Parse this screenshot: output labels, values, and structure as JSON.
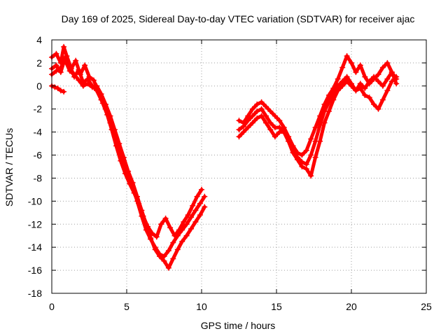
{
  "chart_data": {
    "type": "scatter",
    "title": "Day 169 of 2025, Sidereal Day-to-day VTEC variation (SDTVAR) for receiver ajac",
    "xlabel": "GPS time / hours",
    "ylabel": "SDTVAR / TECUs",
    "xlim": [
      0,
      25
    ],
    "ylim": [
      -18,
      4
    ],
    "xticks": [
      0,
      5,
      10,
      15,
      20,
      25
    ],
    "yticks": [
      -18,
      -16,
      -14,
      -12,
      -10,
      -8,
      -6,
      -4,
      -2,
      0,
      2,
      4
    ],
    "grid": true,
    "legend": "none",
    "marker": "+",
    "color": "#ff0000",
    "series": [
      {
        "x": [
          0.0,
          0.3,
          0.6,
          0.8,
          1.0,
          1.3,
          1.6,
          1.9,
          2.2,
          2.5,
          2.8,
          3.1,
          3.4,
          3.7,
          4.0,
          4.3,
          4.6,
          4.9,
          5.2,
          5.5,
          5.8,
          6.1,
          6.4,
          6.7,
          7.0,
          7.3,
          7.6,
          7.9,
          8.2,
          8.5,
          8.8,
          9.1,
          9.4,
          9.7,
          10.0
        ],
        "y": [
          2.5,
          2.8,
          2.0,
          3.4,
          2.6,
          1.5,
          2.2,
          1.0,
          1.8,
          0.8,
          0.5,
          -0.5,
          -1.5,
          -2.5,
          -3.8,
          -5.2,
          -6.5,
          -7.6,
          -8.5,
          -9.3,
          -10.2,
          -11.3,
          -12.2,
          -12.8,
          -13.1,
          -12.0,
          -11.5,
          -12.3,
          -13.0,
          -12.5,
          -11.8,
          -11.2,
          -10.4,
          -9.6,
          -9.0
        ]
      },
      {
        "x": [
          0.0,
          0.3,
          0.6,
          0.9,
          1.2,
          1.5,
          1.8,
          2.1,
          2.4,
          2.7,
          3.0,
          3.3,
          3.6,
          3.9,
          4.2,
          4.5,
          4.8,
          5.1,
          5.4,
          5.7,
          6.0,
          6.3,
          6.6,
          6.9,
          7.2,
          7.5,
          7.8,
          8.1,
          8.4,
          8.7,
          9.0,
          9.3,
          9.6,
          9.9,
          10.2
        ],
        "y": [
          1.5,
          1.8,
          1.2,
          2.5,
          1.8,
          0.8,
          1.4,
          0.3,
          0.6,
          0.0,
          -0.4,
          -1.2,
          -2.0,
          -3.2,
          -4.4,
          -5.6,
          -6.8,
          -7.8,
          -8.8,
          -10.0,
          -11.3,
          -12.5,
          -13.3,
          -14.0,
          -14.6,
          -14.8,
          -14.3,
          -13.6,
          -13.0,
          -12.5,
          -12.0,
          -11.4,
          -10.8,
          -10.2,
          -9.6
        ]
      },
      {
        "x": [
          0.0,
          0.3,
          0.6,
          0.9,
          1.2,
          1.5,
          1.8,
          2.1,
          2.4,
          2.7,
          3.0,
          3.3,
          3.6,
          3.9,
          4.2,
          4.5,
          4.8,
          5.1,
          5.4,
          5.7,
          6.0,
          6.3,
          6.6,
          6.9,
          7.2,
          7.5,
          7.8,
          8.1,
          8.4,
          8.7,
          9.0,
          9.3,
          9.6,
          9.9,
          10.2
        ],
        "y": [
          1.0,
          1.3,
          1.6,
          2.2,
          1.3,
          1.0,
          0.5,
          0.0,
          0.2,
          -0.1,
          0.0,
          -0.7,
          -1.6,
          -2.6,
          -3.8,
          -5.0,
          -6.2,
          -7.4,
          -8.4,
          -9.6,
          -10.8,
          -12.0,
          -13.2,
          -14.2,
          -14.8,
          -15.2,
          -15.8,
          -15.0,
          -14.2,
          -13.5,
          -13.0,
          -12.4,
          -11.8,
          -11.2,
          -10.5
        ]
      },
      {
        "x": [
          0.0,
          0.2,
          0.4,
          0.6,
          0.8
        ],
        "y": [
          0.0,
          -0.1,
          -0.2,
          -0.4,
          -0.5
        ]
      },
      {
        "x": [
          12.5,
          12.8,
          13.1,
          13.4,
          13.7,
          14.0,
          14.3,
          14.6,
          14.9,
          15.2,
          15.5,
          15.8,
          16.1,
          16.4,
          16.7,
          17.0,
          17.3,
          17.6,
          17.9,
          18.2,
          18.5,
          18.8,
          19.1,
          19.4,
          19.7,
          20.0,
          20.3,
          20.6,
          20.9,
          21.2,
          21.5,
          21.8,
          22.1,
          22.4,
          22.7,
          23.0
        ],
        "y": [
          -3.0,
          -3.2,
          -2.6,
          -2.0,
          -1.6,
          -1.4,
          -1.8,
          -2.2,
          -2.6,
          -3.0,
          -3.6,
          -4.4,
          -5.2,
          -5.8,
          -6.0,
          -5.6,
          -4.6,
          -3.6,
          -2.6,
          -1.6,
          -0.8,
          -0.2,
          0.6,
          1.6,
          2.6,
          2.0,
          1.2,
          1.8,
          0.8,
          0.2,
          0.6,
          1.0,
          1.6,
          2.0,
          1.2,
          0.6
        ]
      },
      {
        "x": [
          12.5,
          12.8,
          13.1,
          13.4,
          13.7,
          14.0,
          14.3,
          14.6,
          14.9,
          15.2,
          15.5,
          15.8,
          16.1,
          16.4,
          16.7,
          17.0,
          17.3,
          17.6,
          17.9,
          18.2,
          18.5,
          18.8,
          19.1,
          19.4,
          19.7,
          20.0,
          20.3,
          20.6,
          20.9,
          21.2,
          21.5,
          21.8,
          22.1,
          22.4,
          22.7,
          23.0
        ],
        "y": [
          -3.8,
          -3.5,
          -3.0,
          -2.6,
          -2.2,
          -2.0,
          -2.6,
          -3.2,
          -3.6,
          -3.6,
          -4.0,
          -4.8,
          -5.6,
          -6.2,
          -6.6,
          -6.8,
          -6.0,
          -4.8,
          -3.4,
          -2.2,
          -1.4,
          -0.6,
          0.0,
          0.4,
          0.8,
          0.2,
          -0.4,
          -0.2,
          -0.8,
          -1.0,
          -1.6,
          -2.0,
          -1.2,
          -0.4,
          0.4,
          0.8
        ]
      },
      {
        "x": [
          12.5,
          12.8,
          13.1,
          13.4,
          13.7,
          14.0,
          14.3,
          14.6,
          14.9,
          15.2,
          15.5,
          15.8,
          16.1,
          16.4,
          16.7,
          17.0,
          17.3,
          17.6,
          17.9,
          18.2,
          18.5,
          18.8,
          19.1,
          19.4,
          19.7,
          20.0,
          20.3,
          20.6,
          20.9,
          21.2,
          21.5,
          21.8,
          22.1,
          22.4,
          22.7,
          23.0
        ],
        "y": [
          -4.4,
          -4.0,
          -3.6,
          -3.2,
          -2.8,
          -2.6,
          -3.2,
          -3.8,
          -4.4,
          -4.0,
          -4.0,
          -4.8,
          -5.8,
          -6.4,
          -7.0,
          -7.2,
          -7.8,
          -6.2,
          -4.8,
          -3.2,
          -2.2,
          -1.2,
          -0.4,
          0.0,
          0.4,
          0.0,
          -0.4,
          0.2,
          -0.2,
          0.4,
          0.8,
          0.4,
          0.0,
          0.6,
          1.2,
          0.2
        ]
      }
    ]
  }
}
